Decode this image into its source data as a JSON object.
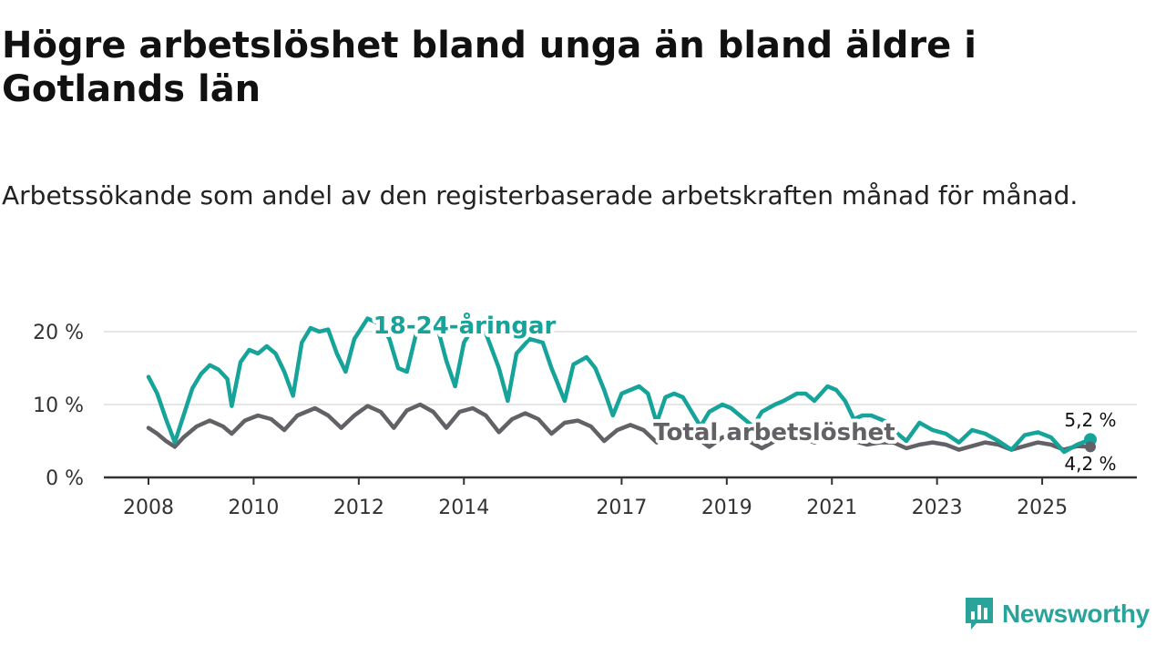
{
  "chart_data": {
    "type": "line",
    "title": "Högre arbetslöshet bland unga än bland äldre i Gotlands län",
    "subtitle": "Arbetssökande som andel av den registerbaserade arbetskraften månad för månad.",
    "x_ticks": [
      "2008",
      "2010",
      "2012",
      "2014",
      "2017",
      "2019",
      "2021",
      "2023",
      "2025"
    ],
    "y_ticks": [
      "0 %",
      "10 %",
      "20 %"
    ],
    "ylim": [
      0,
      20
    ],
    "grid": true,
    "legend": "none",
    "series": [
      {
        "name": "18-24-åringar",
        "color": "#16a39a",
        "end_label": "5,2 %",
        "points": [
          [
            "2008-01",
            13.8
          ],
          [
            "2008-03",
            11.5
          ],
          [
            "2008-05",
            8.0
          ],
          [
            "2008-07",
            4.8
          ],
          [
            "2008-09",
            8.5
          ],
          [
            "2008-11",
            12.2
          ],
          [
            "2009-01",
            14.2
          ],
          [
            "2009-03",
            15.4
          ],
          [
            "2009-05",
            14.8
          ],
          [
            "2009-07",
            13.5
          ],
          [
            "2009-08",
            9.8
          ],
          [
            "2009-10",
            15.8
          ],
          [
            "2009-12",
            17.5
          ],
          [
            "2010-02",
            17.0
          ],
          [
            "2010-04",
            18.0
          ],
          [
            "2010-06",
            17.0
          ],
          [
            "2010-08",
            14.5
          ],
          [
            "2010-10",
            11.2
          ],
          [
            "2010-12",
            18.5
          ],
          [
            "2011-02",
            20.5
          ],
          [
            "2011-04",
            20.0
          ],
          [
            "2011-06",
            20.3
          ],
          [
            "2011-08",
            17.0
          ],
          [
            "2011-10",
            14.5
          ],
          [
            "2011-12",
            19.0
          ],
          [
            "2012-03",
            21.8
          ],
          [
            "2012-06",
            21.0
          ],
          [
            "2012-08",
            19.0
          ],
          [
            "2012-10",
            15.0
          ],
          [
            "2012-12",
            14.5
          ],
          [
            "2013-02",
            19.5
          ],
          [
            "2013-04",
            21.5
          ],
          [
            "2013-07",
            20.5
          ],
          [
            "2013-09",
            16.0
          ],
          [
            "2013-11",
            12.5
          ],
          [
            "2014-01",
            18.5
          ],
          [
            "2014-03",
            20.5
          ],
          [
            "2014-06",
            19.8
          ],
          [
            "2014-09",
            15.0
          ],
          [
            "2014-11",
            10.5
          ],
          [
            "2015-01",
            17.0
          ],
          [
            "2015-04",
            19.0
          ],
          [
            "2015-07",
            18.5
          ],
          [
            "2015-09",
            15.0
          ],
          [
            "2015-12",
            10.5
          ],
          [
            "2016-02",
            15.5
          ],
          [
            "2016-05",
            16.5
          ],
          [
            "2016-07",
            15.0
          ],
          [
            "2016-09",
            12.0
          ],
          [
            "2016-11",
            8.5
          ],
          [
            "2017-01",
            11.5
          ],
          [
            "2017-03",
            12.0
          ],
          [
            "2017-05",
            12.5
          ],
          [
            "2017-07",
            11.5
          ],
          [
            "2017-09",
            7.5
          ],
          [
            "2017-11",
            11.0
          ],
          [
            "2018-01",
            11.5
          ],
          [
            "2018-03",
            11.0
          ],
          [
            "2018-05",
            9.0
          ],
          [
            "2018-07",
            7.0
          ],
          [
            "2018-09",
            9.0
          ],
          [
            "2018-12",
            10.0
          ],
          [
            "2019-02",
            9.5
          ],
          [
            "2019-04",
            8.5
          ],
          [
            "2019-07",
            7.0
          ],
          [
            "2019-09",
            9.0
          ],
          [
            "2019-12",
            10.0
          ],
          [
            "2020-02",
            10.5
          ],
          [
            "2020-05",
            11.5
          ],
          [
            "2020-07",
            11.5
          ],
          [
            "2020-09",
            10.5
          ],
          [
            "2020-12",
            12.5
          ],
          [
            "2021-02",
            12.0
          ],
          [
            "2021-04",
            10.5
          ],
          [
            "2021-06",
            8.0
          ],
          [
            "2021-08",
            8.5
          ],
          [
            "2021-10",
            8.5
          ],
          [
            "2021-12",
            8.0
          ],
          [
            "2022-02",
            7.5
          ],
          [
            "2022-04",
            6.0
          ],
          [
            "2022-06",
            5.0
          ],
          [
            "2022-09",
            7.5
          ],
          [
            "2022-12",
            6.5
          ],
          [
            "2023-03",
            6.0
          ],
          [
            "2023-06",
            4.8
          ],
          [
            "2023-09",
            6.5
          ],
          [
            "2023-12",
            6.0
          ],
          [
            "2024-03",
            5.0
          ],
          [
            "2024-06",
            3.8
          ],
          [
            "2024-09",
            5.8
          ],
          [
            "2024-12",
            6.2
          ],
          [
            "2025-03",
            5.5
          ],
          [
            "2025-06",
            3.5
          ],
          [
            "2025-09",
            4.5
          ],
          [
            "2025-12",
            5.2
          ]
        ]
      },
      {
        "name": "Total arbetslöshet",
        "color": "#616166",
        "end_label": "4,2 %",
        "points": [
          [
            "2008-01",
            6.8
          ],
          [
            "2008-03",
            6.0
          ],
          [
            "2008-05",
            5.0
          ],
          [
            "2008-07",
            4.2
          ],
          [
            "2008-09",
            5.5
          ],
          [
            "2008-12",
            7.0
          ],
          [
            "2009-03",
            7.8
          ],
          [
            "2009-06",
            7.0
          ],
          [
            "2009-08",
            6.0
          ],
          [
            "2009-11",
            7.8
          ],
          [
            "2010-02",
            8.5
          ],
          [
            "2010-05",
            8.0
          ],
          [
            "2010-08",
            6.5
          ],
          [
            "2010-11",
            8.5
          ],
          [
            "2011-03",
            9.5
          ],
          [
            "2011-06",
            8.5
          ],
          [
            "2011-09",
            6.8
          ],
          [
            "2011-12",
            8.5
          ],
          [
            "2012-03",
            9.8
          ],
          [
            "2012-06",
            9.0
          ],
          [
            "2012-09",
            6.8
          ],
          [
            "2012-12",
            9.2
          ],
          [
            "2013-03",
            10.0
          ],
          [
            "2013-06",
            9.0
          ],
          [
            "2013-09",
            6.8
          ],
          [
            "2013-12",
            9.0
          ],
          [
            "2014-03",
            9.5
          ],
          [
            "2014-06",
            8.5
          ],
          [
            "2014-09",
            6.2
          ],
          [
            "2014-12",
            8.0
          ],
          [
            "2015-03",
            8.8
          ],
          [
            "2015-06",
            8.0
          ],
          [
            "2015-09",
            6.0
          ],
          [
            "2015-12",
            7.5
          ],
          [
            "2016-03",
            7.8
          ],
          [
            "2016-06",
            7.0
          ],
          [
            "2016-09",
            5.0
          ],
          [
            "2016-12",
            6.5
          ],
          [
            "2017-03",
            7.2
          ],
          [
            "2017-06",
            6.5
          ],
          [
            "2017-09",
            4.8
          ],
          [
            "2017-12",
            6.0
          ],
          [
            "2018-03",
            6.2
          ],
          [
            "2018-06",
            5.5
          ],
          [
            "2018-09",
            4.2
          ],
          [
            "2018-12",
            5.5
          ],
          [
            "2019-03",
            5.8
          ],
          [
            "2019-06",
            5.0
          ],
          [
            "2019-09",
            4.0
          ],
          [
            "2019-12",
            5.0
          ],
          [
            "2020-03",
            5.8
          ],
          [
            "2020-06",
            5.5
          ],
          [
            "2020-09",
            4.8
          ],
          [
            "2020-12",
            5.5
          ],
          [
            "2021-03",
            5.5
          ],
          [
            "2021-06",
            5.0
          ],
          [
            "2021-09",
            4.5
          ],
          [
            "2021-12",
            4.8
          ],
          [
            "2022-03",
            4.8
          ],
          [
            "2022-06",
            4.0
          ],
          [
            "2022-09",
            4.5
          ],
          [
            "2022-12",
            4.8
          ],
          [
            "2023-03",
            4.5
          ],
          [
            "2023-06",
            3.8
          ],
          [
            "2023-09",
            4.3
          ],
          [
            "2023-12",
            4.8
          ],
          [
            "2024-03",
            4.5
          ],
          [
            "2024-06",
            3.8
          ],
          [
            "2024-09",
            4.3
          ],
          [
            "2024-12",
            4.8
          ],
          [
            "2025-03",
            4.5
          ],
          [
            "2025-06",
            3.8
          ],
          [
            "2025-09",
            4.3
          ],
          [
            "2025-12",
            4.2
          ]
        ]
      }
    ]
  },
  "brand": {
    "name": "Newsworthy",
    "icon": "newsworthy-logo-icon",
    "color": "#2aa39a"
  }
}
